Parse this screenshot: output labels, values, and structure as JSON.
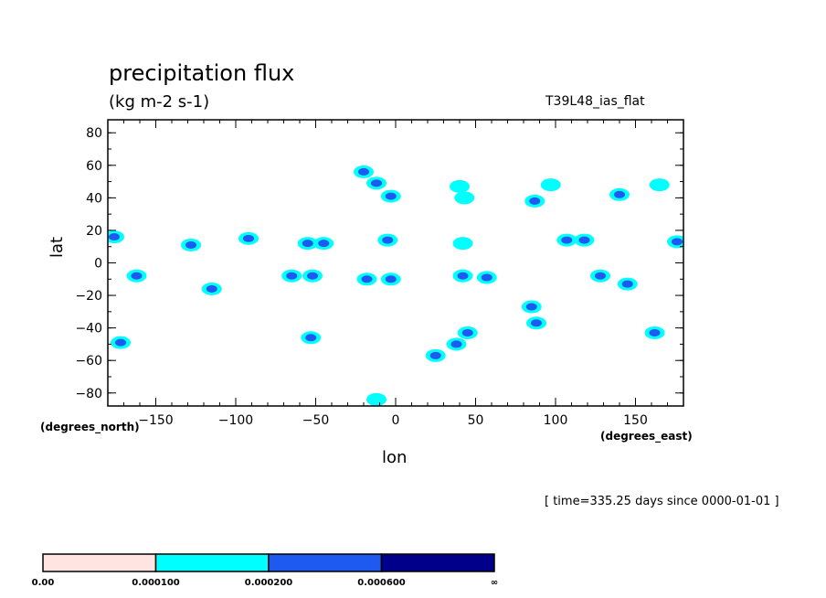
{
  "title": "precipitation flux",
  "units": "(kg m-2 s-1)",
  "run_id": "T39L48_ias_flat",
  "time_note": "[ time=335.25 days since 0000-01-01 ]",
  "chart_data": {
    "type": "heatmap",
    "xlabel": "lon",
    "ylabel": "lat",
    "x_units": "(degrees_east)",
    "y_units": "(degrees_north)",
    "xlim": [
      -180,
      180
    ],
    "ylim": [
      -88,
      88
    ],
    "x_ticks": [
      -150,
      -100,
      -50,
      0,
      50,
      100,
      150
    ],
    "y_ticks": [
      80,
      60,
      40,
      20,
      0,
      -20,
      -40,
      -60,
      -80
    ],
    "colorbar": {
      "labels": [
        "0.00",
        "0.000100",
        "0.000200",
        "0.000600",
        "∞"
      ],
      "colors": [
        "#ffe4e1",
        "#00ffff",
        "#1e5af0",
        "#00008b"
      ]
    },
    "levels": [
      0.0001,
      0.0002,
      0.0006
    ],
    "features": [
      {
        "lon": -10,
        "lat": 50,
        "level": 2,
        "core": [
          [
            -20,
            56
          ],
          [
            -12,
            49
          ],
          [
            -3,
            41
          ]
        ]
      },
      {
        "lon": 30,
        "lat": 45,
        "level": 1,
        "core": [
          [
            40,
            47
          ],
          [
            43,
            40
          ]
        ]
      },
      {
        "lon": 87,
        "lat": 38,
        "level": 2,
        "core": [
          [
            87,
            38
          ]
        ]
      },
      {
        "lon": 97,
        "lat": 48,
        "level": 1
      },
      {
        "lon": 140,
        "lat": 42,
        "level": 2,
        "core": [
          [
            140,
            42
          ]
        ]
      },
      {
        "lon": 165,
        "lat": 48,
        "level": 1
      },
      {
        "lon": -125,
        "lat": 14,
        "level": 2,
        "core": [
          [
            -128,
            11
          ]
        ]
      },
      {
        "lon": -90,
        "lat": 15,
        "level": 2,
        "core": [
          [
            -92,
            15
          ]
        ]
      },
      {
        "lon": -52,
        "lat": 13,
        "level": 2,
        "core": [
          [
            -55,
            12
          ],
          [
            -45,
            12
          ]
        ]
      },
      {
        "lon": -5,
        "lat": 14,
        "level": 2,
        "core": [
          [
            -5,
            14
          ]
        ]
      },
      {
        "lon": 42,
        "lat": 12,
        "level": 1
      },
      {
        "lon": 110,
        "lat": 14,
        "level": 2,
        "core": [
          [
            107,
            14
          ],
          [
            118,
            14
          ]
        ]
      },
      {
        "lon": 175,
        "lat": 13,
        "level": 2,
        "core": [
          [
            176,
            13
          ]
        ]
      },
      {
        "lon": -175,
        "lat": 16,
        "level": 2,
        "core": [
          [
            -176,
            16
          ]
        ]
      },
      {
        "lon": -162,
        "lat": -8,
        "level": 2,
        "core": [
          [
            -162,
            -8
          ]
        ]
      },
      {
        "lon": -118,
        "lat": -16,
        "level": 2,
        "core": [
          [
            -115,
            -16
          ]
        ]
      },
      {
        "lon": -60,
        "lat": -8,
        "level": 2,
        "core": [
          [
            -65,
            -8
          ],
          [
            -52,
            -8
          ]
        ]
      },
      {
        "lon": -10,
        "lat": -10,
        "level": 2,
        "core": [
          [
            -18,
            -10
          ],
          [
            -3,
            -10
          ]
        ]
      },
      {
        "lon": 45,
        "lat": -8,
        "level": 2,
        "core": [
          [
            42,
            -8
          ],
          [
            57,
            -9
          ]
        ]
      },
      {
        "lon": 128,
        "lat": -8,
        "level": 2,
        "core": [
          [
            128,
            -8
          ]
        ]
      },
      {
        "lon": 148,
        "lat": -13,
        "level": 2,
        "core": [
          [
            145,
            -13
          ]
        ]
      },
      {
        "lon": 88,
        "lat": -33,
        "level": 2,
        "core": [
          [
            85,
            -27
          ],
          [
            88,
            -37
          ]
        ]
      },
      {
        "lon": 33,
        "lat": -50,
        "level": 2,
        "core": [
          [
            25,
            -57
          ],
          [
            38,
            -50
          ],
          [
            45,
            -43
          ]
        ]
      },
      {
        "lon": -53,
        "lat": -46,
        "level": 2,
        "core": [
          [
            -53,
            -46
          ]
        ]
      },
      {
        "lon": 162,
        "lat": -43,
        "level": 2,
        "core": [
          [
            162,
            -43
          ]
        ]
      },
      {
        "lon": -172,
        "lat": -49,
        "level": 2,
        "core": [
          [
            -172,
            -49
          ]
        ]
      },
      {
        "lon": -12,
        "lat": -84,
        "level": 1
      }
    ]
  }
}
